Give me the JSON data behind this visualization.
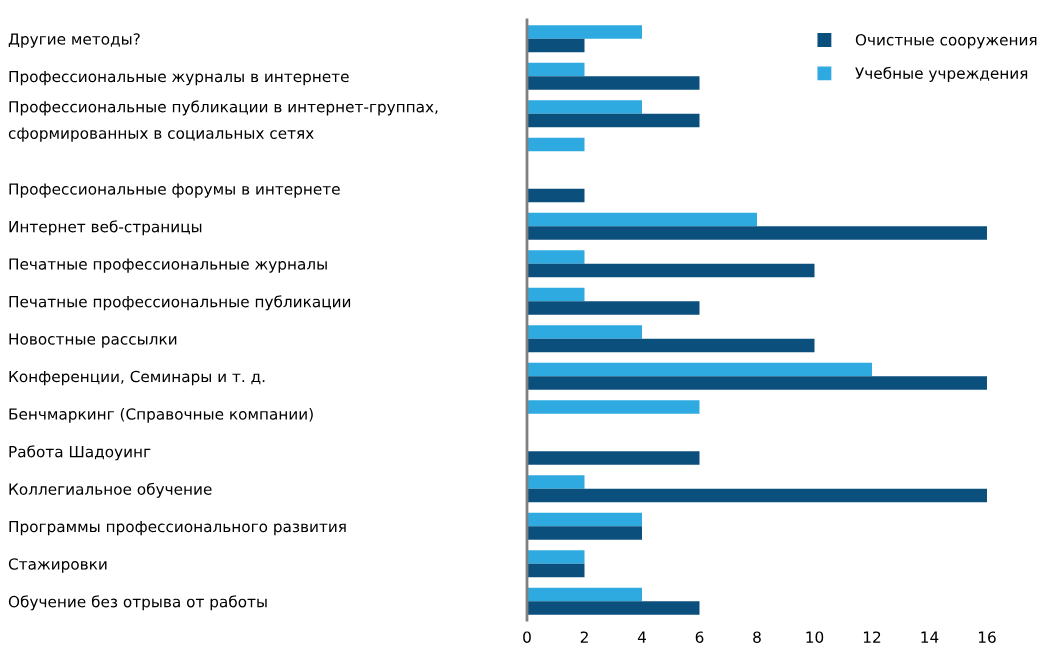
{
  "chart_data": {
    "type": "bar",
    "orientation": "horizontal",
    "categories": [
      "Другие методы?",
      "Профессиональные журналы в интернете",
      "Профессиональные публикации в интернет-группах,\nсформированных в социальных сетях",
      null,
      "Профессиональные форумы в интернете",
      "Интернет веб-страницы",
      "Печатные профессиональные журналы",
      "Печатные профессиональные публикации",
      "Новостные рассылки",
      "Конференции, Семинары и т. д.",
      "Бенчмаркинг (Справочные компании)",
      "Работа Шадоуинг",
      "Коллегиальное обучение",
      "Программы профессионального развития",
      "Стажировки",
      "Обучение без отрыва от работы"
    ],
    "series": [
      {
        "name": "Учебные учреждения",
        "color": "#2eaae1",
        "values": [
          4,
          2,
          4,
          2,
          null,
          8,
          2,
          2,
          4,
          12,
          6,
          null,
          2,
          4,
          2,
          4
        ]
      },
      {
        "name": "Очистные сооружения",
        "color": "#0b4f7c",
        "values": [
          2,
          6,
          6,
          null,
          2,
          16,
          10,
          6,
          10,
          16,
          null,
          6,
          16,
          4,
          2,
          6
        ]
      }
    ],
    "xlim": [
      0,
      16
    ],
    "xticks": [
      0,
      2,
      4,
      6,
      8,
      10,
      12,
      14,
      16
    ],
    "grid": false,
    "legend": "top right"
  }
}
